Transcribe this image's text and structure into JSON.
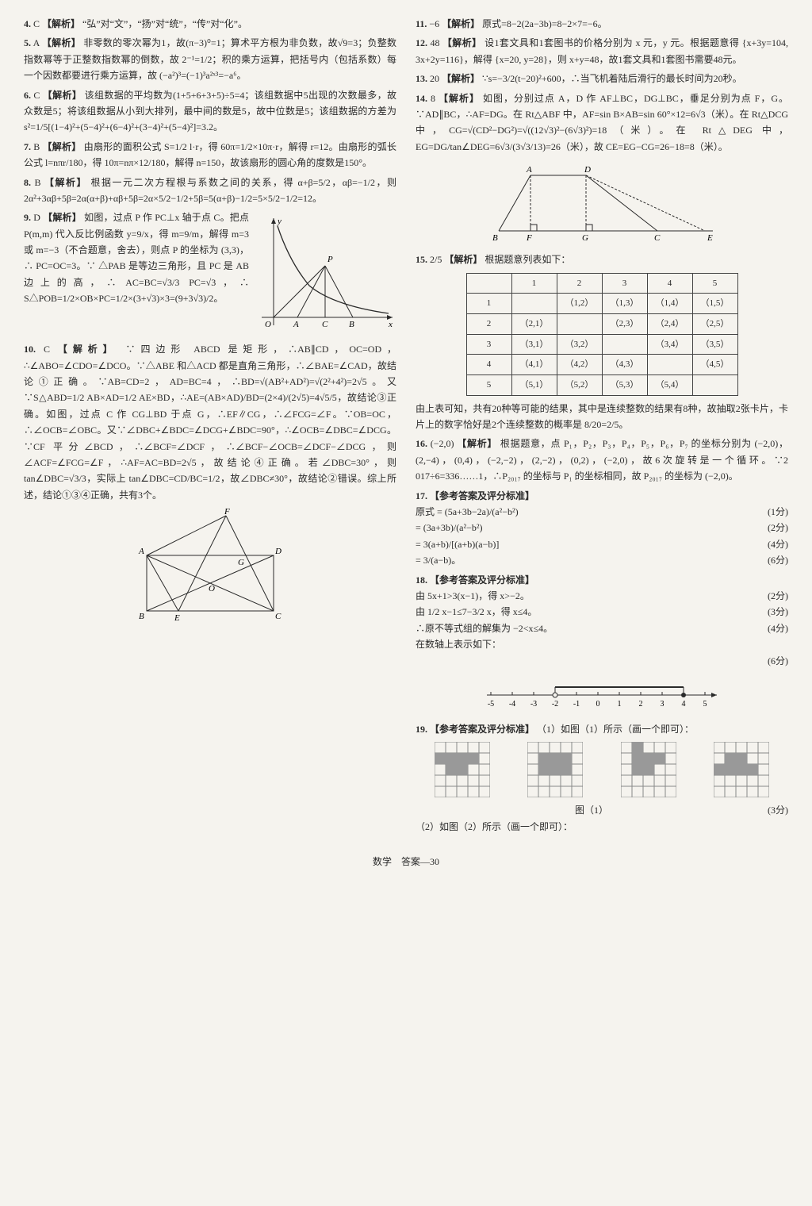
{
  "footer": "数学　答案—30",
  "left": {
    "q4": {
      "num": "4.",
      "ans": "C",
      "tag": "【解析】",
      "body": "“弘”对“文”，“扬”对“统”，“传”对“化”。"
    },
    "q5": {
      "num": "5.",
      "ans": "A",
      "tag": "【解析】",
      "body": "非零数的零次幂为1，故(π−3)⁰=1；算术平方根为非负数，故√9=3；负整数指数幂等于正整数指数幂的倒数，故 2⁻¹=1/2；积的乘方运算，把括号内（包括系数）每一个因数都要进行乘方运算，故 (−a²)³=(−1)³a²ˣ³=−a⁶。"
    },
    "q6": {
      "num": "6.",
      "ans": "C",
      "tag": "【解析】",
      "body": "该组数据的平均数为(1+5+6+3+5)÷5=4；该组数据中5出现的次数最多，故众数是5；将该组数据从小到大排列，最中间的数是5，故中位数是5；该组数据的方差为 s²=1/5[(1−4)²+(5−4)²+(6−4)²+(3−4)²+(5−4)²]=3.2。"
    },
    "q7": {
      "num": "7.",
      "ans": "B",
      "tag": "【解析】",
      "body": "由扇形的面积公式 S=1/2 l·r，得 60π=1/2×10π·r，解得 r=12。由扇形的弧长公式 l=nπr/180，得 10π=nπ×12/180，解得 n=150，故该扇形的圆心角的度数是150°。"
    },
    "q8": {
      "num": "8.",
      "ans": "B",
      "tag": "【解析】",
      "body": "根据一元二次方程根与系数之间的关系，得 α+β=5/2，αβ=−1/2，则 2α²+3αβ+5β=2α(α+β)+αβ+5β=2α×5/2−1/2+5β=5(α+β)−1/2=5×5/2−1/2=12。"
    },
    "q9": {
      "num": "9.",
      "ans": "D",
      "tag": "【解析】",
      "body": "如图，过点 P 作 PC⊥x 轴于点 C。把点 P(m,m) 代入反比例函数 y=9/x，得 m=9/m，解得 m=3 或 m=−3（不合题意，舍去），则点 P 的坐标为 (3,3)，∴ PC=OC=3。∵ △PAB 是等边三角形，且 PC 是 AB 边上的高，∴ AC=BC=√3/3 PC=√3，∴ S△POB=1/2×OB×PC=1/2×(3+√3)×3=(9+3√3)/2。"
    },
    "q10": {
      "num": "10.",
      "ans": "C",
      "tag": "【解析】",
      "body": "∵四边形 ABCD 是矩形，∴AB∥CD，OC=OD，∴∠ABO=∠CDO=∠DCO。∵△ABE 和△ACD 都是直角三角形，∴∠BAE=∠CAD，故结论①正确。∵AB=CD=2，AD=BC=4，∴BD=√(AB²+AD²)=√(2²+4²)=2√5。又∵S△ABD=1/2 AB×AD=1/2 AE×BD，∴AE=(AB×AD)/BD=(2×4)/(2√5)=4√5/5，故结论③正确。如图，过点 C 作 CG⊥BD 于点 G，∴EF∥CG，∴∠FCG=∠F。∵OB=OC，∴∠OCB=∠OBC。又∵∠DBC+∠BDC=∠DCG+∠BDC=90°，∴∠OCB=∠DBC=∠DCG。∵CF 平分∠BCD，∴∠BCF=∠DCF，∴∠BCF−∠OCB=∠DCF−∠DCG，则∠ACF=∠FCG=∠F，∴AF=AC=BD=2√5，故结论④正确。若∠DBC=30°，则 tan∠DBC=√3/3，实际上 tan∠DBC=CD/BC=1/2，故∠DBC≠30°，故结论②错误。综上所述，结论①③④正确，共有3个。"
    }
  },
  "right": {
    "q11": {
      "num": "11.",
      "ans": "−6",
      "tag": "【解析】",
      "body": "原式=8−2(2a−3b)=8−2×7=−6。"
    },
    "q12": {
      "num": "12.",
      "ans": "48",
      "tag": "【解析】",
      "body": "设1套文具和1套图书的价格分别为 x 元，y 元。根据题意得 {x+3y=104, 3x+2y=116}，解得 {x=20, y=28}，则 x+y=48，故1套文具和1套图书需要48元。"
    },
    "q13": {
      "num": "13.",
      "ans": "20",
      "tag": "【解析】",
      "body": "∵s=−3/2(t−20)²+600，∴当飞机着陆后滑行的最长时间为20秒。"
    },
    "q14": {
      "num": "14.",
      "ans": "8",
      "tag": "【解析】",
      "body": "如图，分别过点 A，D 作 AF⊥BC，DG⊥BC，垂足分别为点 F，G。∵AD∥BC，∴AF=DG。在 Rt△ABF 中，AF=sin B×AB=sin 60°×12=6√3（米）。在 Rt△DCG 中，CG=√(CD²−DG²)=√((12√3)²−(6√3)²)=18（米）。在 Rt△DEG 中，EG=DG/tan∠DEG=6√3/(3√3/13)=26（米），故 CE=EG−CG=26−18=8（米）。"
    },
    "q15": {
      "num": "15.",
      "ans": "2/5",
      "tag": "【解析】",
      "body": "根据题意列表如下：",
      "table_head": [
        "",
        "1",
        "2",
        "3",
        "4",
        "5"
      ],
      "table_rows": [
        [
          "1",
          "",
          "（1,2）",
          "（1,3）",
          "（1,4）",
          "（1,5）"
        ],
        [
          "2",
          "（2,1）",
          "",
          "（2,3）",
          "（2,4）",
          "（2,5）"
        ],
        [
          "3",
          "（3,1）",
          "（3,2）",
          "",
          "（3,4）",
          "（3,5）"
        ],
        [
          "4",
          "（4,1）",
          "（4,2）",
          "（4,3）",
          "",
          "（4,5）"
        ],
        [
          "5",
          "（5,1）",
          "（5,2）",
          "（5,3）",
          "（5,4）",
          ""
        ]
      ],
      "after": "由上表可知，共有20种等可能的结果，其中是连续整数的结果有8种，故抽取2张卡片，卡片上的数字恰好是2个连续整数的概率是 8/20=2/5。"
    },
    "q16": {
      "num": "16.",
      "ans": "(−2,0)",
      "tag": "【解析】",
      "body": "根据题意，点 P₁，P₂，P₃，P₄，P₅，P₆，P₇ 的坐标分别为 (−2,0)，(2,−4)，(0,4)，(−2,−2)，(2,−2)，(0,2)，(−2,0)，故6次旋转是一个循环。∵2 017÷6=336……1，∴P₂₀₁₇ 的坐标与 P₁ 的坐标相同，故 P₂₀₁₇ 的坐标为 (−2,0)。"
    },
    "q17": {
      "num": "17.",
      "tag": "【参考答案及评分标准】",
      "lines": [
        {
          "t": "原式 = (5a+3b−2a)/(a²−b²)",
          "s": "(1分)"
        },
        {
          "t": "= (3a+3b)/(a²−b²)",
          "s": "(2分)"
        },
        {
          "t": "= 3(a+b)/[(a+b)(a−b)]",
          "s": "(4分)"
        },
        {
          "t": "= 3/(a−b)。",
          "s": "(6分)"
        }
      ]
    },
    "q18": {
      "num": "18.",
      "tag": "【参考答案及评分标准】",
      "lines": [
        {
          "t": "由 5x+1>3(x−1)，得 x>−2。",
          "s": "(2分)"
        },
        {
          "t": "由 1/2 x−1≤7−3/2 x，得 x≤4。",
          "s": "(3分)"
        },
        {
          "t": "∴原不等式组的解集为 −2<x≤4。",
          "s": "(4分)"
        },
        {
          "t": "在数轴上表示如下：",
          "s": ""
        },
        {
          "t": "",
          "s": "(6分)"
        }
      ]
    },
    "q19": {
      "num": "19.",
      "tag": "【参考答案及评分标准】",
      "p1": "（1）如图（1）所示（画一个即可）：",
      "cap1": "图（1）",
      "s1": "(3分)",
      "p2": "（2）如图（2）所示（画一个即可）："
    }
  },
  "svg": {
    "q9_curve_color": "#2a2a2a",
    "q9_bg": "#f5f3ee",
    "trap_color": "#2a2a2a",
    "rect_color": "#2a2a2a",
    "numline_ticks": [
      -5,
      -4,
      -3,
      -2,
      -1,
      0,
      1,
      2,
      3,
      4,
      5
    ]
  }
}
